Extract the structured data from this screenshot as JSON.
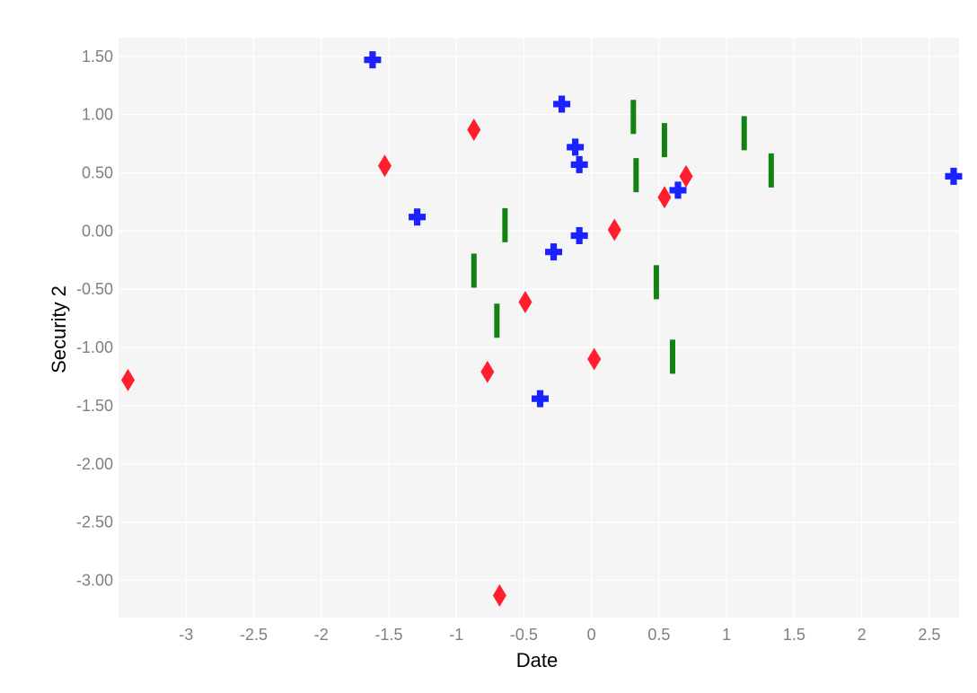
{
  "chart_data": {
    "type": "scatter",
    "title": "",
    "xlabel": "Date",
    "ylabel": "Security 2",
    "xlim": [
      -3.5,
      2.72
    ],
    "ylim": [
      -3.32,
      1.66
    ],
    "x_ticks": [
      "-3",
      "-2.5",
      "-2",
      "-1.5",
      "-1",
      "-0.5",
      "0",
      "0.5",
      "1",
      "1.5",
      "2",
      "2.5"
    ],
    "y_ticks": [
      "1.50",
      "1.00",
      "0.50",
      "0.00",
      "-0.50",
      "-1.00",
      "-1.50",
      "-2.00",
      "-2.50",
      "-3.00"
    ],
    "grid": true,
    "background": "#f5f5f5",
    "series": [
      {
        "marker": "diamond",
        "color": "#ff1e2e",
        "points": [
          [
            -3.43,
            -1.28
          ],
          [
            -1.53,
            0.56
          ],
          [
            -0.87,
            0.87
          ],
          [
            -0.77,
            -1.21
          ],
          [
            -0.49,
            -0.61
          ],
          [
            -0.68,
            -3.13
          ],
          [
            0.02,
            -1.1
          ],
          [
            0.17,
            0.01
          ],
          [
            0.54,
            0.29
          ],
          [
            0.7,
            0.47
          ]
        ]
      },
      {
        "marker": "cross",
        "color": "#1a22ff",
        "points": [
          [
            -1.62,
            1.47
          ],
          [
            -1.29,
            0.12
          ],
          [
            -0.38,
            -1.44
          ],
          [
            -0.28,
            -0.18
          ],
          [
            -0.22,
            1.09
          ],
          [
            -0.12,
            0.72
          ],
          [
            -0.09,
            0.57
          ],
          [
            -0.09,
            -0.04
          ],
          [
            0.64,
            0.35
          ],
          [
            2.68,
            0.47
          ]
        ]
      },
      {
        "marker": "line-ns",
        "color": "#128212",
        "points": [
          [
            -0.87,
            -0.34
          ],
          [
            -0.64,
            0.05
          ],
          [
            -0.7,
            -0.77
          ],
          [
            0.31,
            0.98
          ],
          [
            0.33,
            0.48
          ],
          [
            0.54,
            0.78
          ],
          [
            0.48,
            -0.44
          ],
          [
            0.6,
            -1.08
          ],
          [
            1.13,
            0.84
          ],
          [
            1.33,
            0.52
          ]
        ]
      }
    ]
  }
}
